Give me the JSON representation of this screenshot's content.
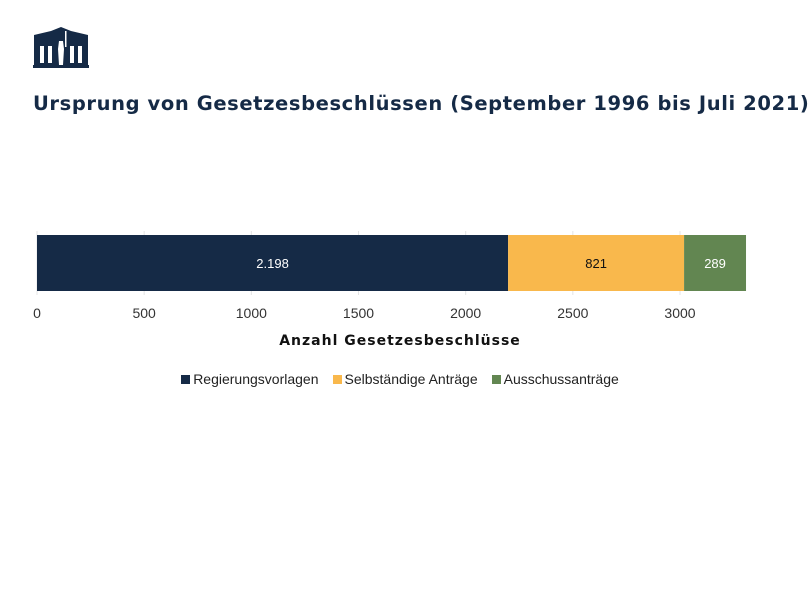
{
  "chart_data": {
    "type": "bar",
    "orientation": "horizontal",
    "stacked": true,
    "title": "Ursprung von Gesetzesbeschlüssen (September 1996 bis Juli 2021)",
    "xlabel": "Anzahl Gesetzesbeschlüsse",
    "ylabel": "",
    "xlim": [
      0,
      3308
    ],
    "xticks": [
      0,
      500,
      1000,
      1500,
      2000,
      2500,
      3000
    ],
    "xtick_labels": [
      "0",
      "500",
      "1000",
      "1500",
      "2000",
      "2500",
      "3000"
    ],
    "grid": true,
    "legend_placement": "bottom",
    "series": [
      {
        "name": "Regierungsvorlagen",
        "values": [
          2198
        ],
        "label": "2.198",
        "color": "#152a46",
        "label_color": "#ffffff"
      },
      {
        "name": "Selbständige Anträge",
        "values": [
          821
        ],
        "label": "821",
        "color": "#f9b84c",
        "label_color": "#111111"
      },
      {
        "name": "Ausschussanträge",
        "values": [
          289
        ],
        "label": "289",
        "color": "#628651",
        "label_color": "#ffffff"
      }
    ]
  },
  "logo": {
    "icon": "parliament-building-logo"
  }
}
